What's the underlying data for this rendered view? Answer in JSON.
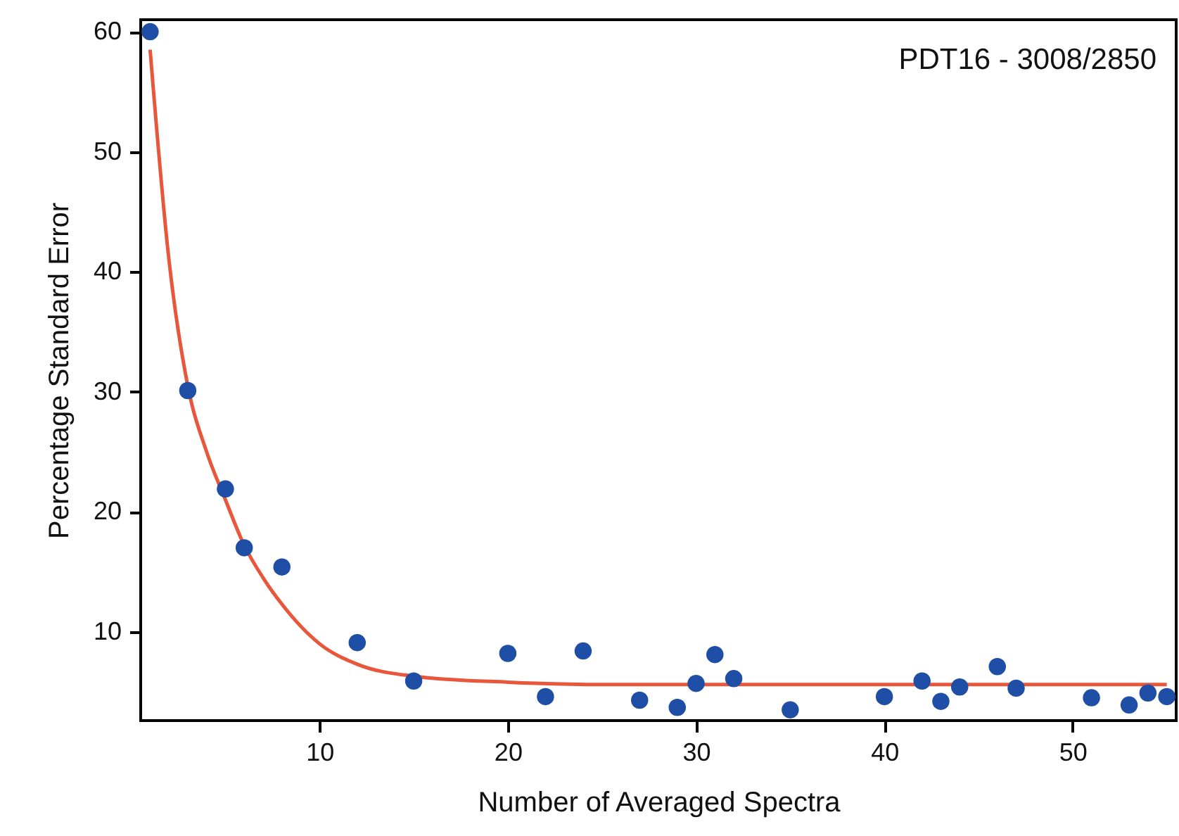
{
  "chart_data": {
    "type": "scatter",
    "xlabel": "Number of Averaged Spectra",
    "ylabel": "Percentage Standard Error",
    "annotations": [
      "PDT16 - 3008/2850"
    ],
    "xlim": [
      0.5,
      55.5
    ],
    "ylim": [
      2.6,
      61
    ],
    "xticks": [
      10,
      20,
      30,
      40,
      50
    ],
    "yticks": [
      10,
      20,
      30,
      40,
      50,
      60
    ],
    "grid": false,
    "series": [
      {
        "color": "#1f4ea6",
        "marker": "circle",
        "x": [
          1,
          3,
          5,
          6,
          8,
          12,
          15,
          20,
          22,
          24,
          27,
          29,
          30,
          31,
          32,
          35,
          40,
          42,
          43,
          44,
          46,
          47,
          51,
          53,
          54,
          55
        ],
        "values": [
          60,
          30.1,
          21.9,
          17.0,
          15.4,
          9.1,
          5.9,
          8.2,
          4.6,
          8.4,
          4.3,
          3.7,
          5.7,
          8.1,
          6.1,
          3.5,
          4.6,
          5.9,
          4.2,
          5.4,
          7.1,
          5.3,
          4.5,
          3.9,
          4.9,
          4.6
        ]
      },
      {
        "type": "line",
        "color": "#e8573c",
        "line_style": "solid",
        "x": [
          1,
          2,
          3,
          4,
          5,
          6,
          7,
          8,
          10,
          12,
          15,
          20,
          25,
          37,
          55
        ],
        "values": [
          58.5,
          41,
          30.5,
          25,
          21,
          17.2,
          14.5,
          12.3,
          9,
          7.3,
          6.3,
          5.8,
          5.6,
          5.6,
          5.6
        ]
      }
    ]
  }
}
